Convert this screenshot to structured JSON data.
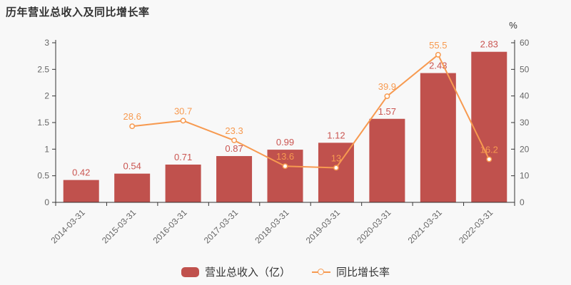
{
  "title": "历年营业总收入及同比增长率",
  "colors": {
    "background": "#f8f8f8",
    "bar": "#c0514d",
    "bar_label": "#ca5551",
    "line": "#f79a50",
    "line_label": "#f79a50",
    "axis_line": "#333333",
    "tick_label": "#666666",
    "title": "#333333",
    "legend_text": "#333333"
  },
  "chart_data": {
    "type": "bar+line",
    "categories": [
      "2014-03-31",
      "2015-03-31",
      "2016-03-31",
      "2017-03-31",
      "2018-03-31",
      "2019-03-31",
      "2020-03-31",
      "2021-03-31",
      "2022-03-31"
    ],
    "series": [
      {
        "name": "营业总收入（亿）",
        "type": "bar",
        "axis": "left",
        "values": [
          0.42,
          0.54,
          0.71,
          0.87,
          0.99,
          1.12,
          1.57,
          2.43,
          2.83
        ],
        "labels": [
          "0.42",
          "0.54",
          "0.71",
          "0.87",
          "0.99",
          "1.12",
          "1.57",
          "2.43",
          "2.83"
        ]
      },
      {
        "name": "同比增长率",
        "type": "line",
        "axis": "right",
        "values": [
          null,
          28.6,
          30.7,
          23.3,
          13.6,
          13,
          39.9,
          55.5,
          16.2
        ],
        "labels": [
          "",
          "28.6",
          "30.7",
          "23.3",
          "13.6",
          "13",
          "39.9",
          "55.5",
          "16.2"
        ]
      }
    ],
    "left_axis": {
      "min": 0,
      "max": 3,
      "ticks": [
        0,
        0.5,
        1,
        1.5,
        2,
        2.5,
        3
      ]
    },
    "right_axis": {
      "min": 0,
      "max": 60,
      "ticks": [
        0,
        10,
        20,
        30,
        40,
        50,
        60
      ],
      "unit": "%"
    },
    "legend": [
      "营业总收入（亿）",
      "同比增长率"
    ],
    "grid": false,
    "legend_position": "bottom-center"
  }
}
